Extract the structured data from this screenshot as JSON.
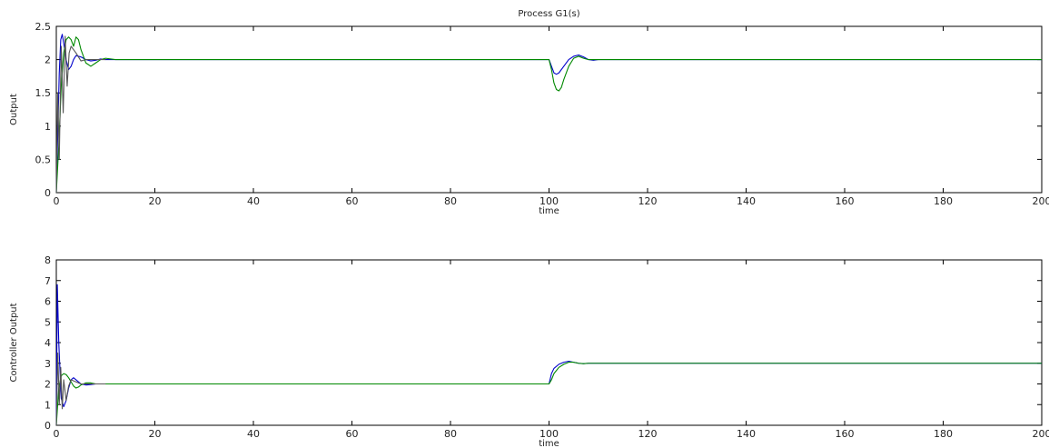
{
  "chart_data": [
    {
      "type": "line",
      "title": "Process G1(s)",
      "xlabel": "time",
      "ylabel": "Output",
      "xlim": [
        0,
        200
      ],
      "ylim": [
        0,
        2.5
      ],
      "xticks": [
        "0",
        "20",
        "40",
        "60",
        "80",
        "100",
        "120",
        "140",
        "160",
        "180",
        "200"
      ],
      "yticks": [
        "0",
        "0.5",
        "1",
        "1.5",
        "2",
        "2.5"
      ],
      "grid": false,
      "series": [
        {
          "color": "#0000cc",
          "x": [
            0,
            0.3,
            0.6,
            0.9,
            1.2,
            1.5,
            2,
            2.5,
            3,
            3.5,
            4,
            5,
            6,
            7,
            8,
            9,
            10,
            12,
            14,
            16,
            100,
            100.5,
            101,
            101.5,
            102,
            103,
            104,
            105,
            106,
            107,
            108,
            109,
            110,
            112,
            200
          ],
          "y": [
            0,
            0.9,
            1.8,
            2.3,
            2.38,
            2.25,
            2.0,
            1.85,
            1.9,
            2.0,
            2.06,
            2.04,
            2.0,
            1.98,
            1.99,
            2.01,
            2.0,
            2.0,
            2.0,
            2.0,
            2.0,
            1.9,
            1.8,
            1.78,
            1.8,
            1.9,
            2.0,
            2.05,
            2.07,
            2.04,
            2.0,
            1.99,
            2.0,
            2.0,
            2.0
          ]
        },
        {
          "color": "#008800",
          "x": [
            0,
            0.5,
            1,
            1.5,
            2,
            2.5,
            3,
            3.5,
            4,
            4.5,
            5,
            6,
            7,
            8,
            9,
            10,
            12,
            14,
            16,
            100,
            100.5,
            101,
            101.5,
            102,
            102.5,
            103,
            104,
            105,
            106,
            107,
            108,
            110,
            112,
            200
          ],
          "y": [
            0,
            0.7,
            1.6,
            2.1,
            2.3,
            2.34,
            2.3,
            2.2,
            2.34,
            2.3,
            2.15,
            1.95,
            1.9,
            1.95,
            2.0,
            2.02,
            2.0,
            2.0,
            2.0,
            2.0,
            1.85,
            1.65,
            1.55,
            1.53,
            1.58,
            1.7,
            1.9,
            2.02,
            2.05,
            2.02,
            2.0,
            2.0,
            2.0,
            2.0
          ]
        },
        {
          "color": "#555555",
          "x": [
            0,
            0.3,
            0.6,
            1.0,
            1.4,
            1.8,
            2.2,
            2.6,
            3,
            4,
            5,
            6,
            8,
            10
          ],
          "y": [
            0,
            1.5,
            0.5,
            2.2,
            1.2,
            2.35,
            1.6,
            2.1,
            2.2,
            2.1,
            1.98,
            2.0,
            2.0,
            2.0
          ]
        }
      ]
    },
    {
      "type": "line",
      "title": "",
      "xlabel": "time",
      "ylabel": "Controller Output",
      "xlim": [
        0,
        200
      ],
      "ylim": [
        0,
        8
      ],
      "xticks": [
        "0",
        "20",
        "40",
        "60",
        "80",
        "100",
        "120",
        "140",
        "160",
        "180",
        "200"
      ],
      "yticks": [
        "0",
        "1",
        "2",
        "3",
        "4",
        "5",
        "6",
        "7",
        "8"
      ],
      "grid": false,
      "series": [
        {
          "color": "#0000cc",
          "x": [
            0,
            0.2,
            0.5,
            1,
            1.5,
            2,
            2.5,
            3,
            3.5,
            4,
            5,
            6,
            7,
            8,
            9,
            10,
            100,
            100.5,
            101,
            102,
            103,
            104,
            105,
            106,
            107,
            108,
            110,
            200
          ],
          "y": [
            0,
            6.8,
            4.0,
            1.3,
            0.9,
            1.2,
            1.8,
            2.2,
            2.3,
            2.2,
            2.0,
            1.95,
            1.97,
            2.0,
            2.0,
            2.0,
            2.0,
            2.5,
            2.75,
            2.95,
            3.05,
            3.1,
            3.05,
            3.0,
            2.98,
            3.0,
            3.0,
            3.0
          ]
        },
        {
          "color": "#008800",
          "x": [
            0,
            0.5,
            1,
            1.5,
            2,
            2.5,
            3,
            3.5,
            4,
            4.5,
            5,
            6,
            7,
            8,
            9,
            10,
            100,
            100.5,
            101,
            102,
            103,
            104,
            105,
            106,
            107,
            108,
            110,
            200
          ],
          "y": [
            0,
            1.8,
            2.4,
            2.5,
            2.45,
            2.3,
            2.1,
            1.9,
            1.8,
            1.85,
            1.95,
            2.05,
            2.05,
            2.0,
            2.0,
            2.0,
            2.0,
            2.2,
            2.5,
            2.8,
            2.95,
            3.05,
            3.05,
            3.0,
            2.98,
            3.0,
            3.0,
            3.0
          ]
        },
        {
          "color": "#555555",
          "x": [
            0,
            0.3,
            0.6,
            0.9,
            1.2,
            1.5,
            2,
            2.5,
            3,
            4,
            5,
            6,
            8,
            10
          ],
          "y": [
            0,
            3.5,
            1.0,
            2.8,
            0.8,
            2.2,
            1.2,
            1.9,
            2.2,
            2.1,
            2.0,
            2.0,
            2.0,
            2.0
          ]
        }
      ]
    }
  ]
}
